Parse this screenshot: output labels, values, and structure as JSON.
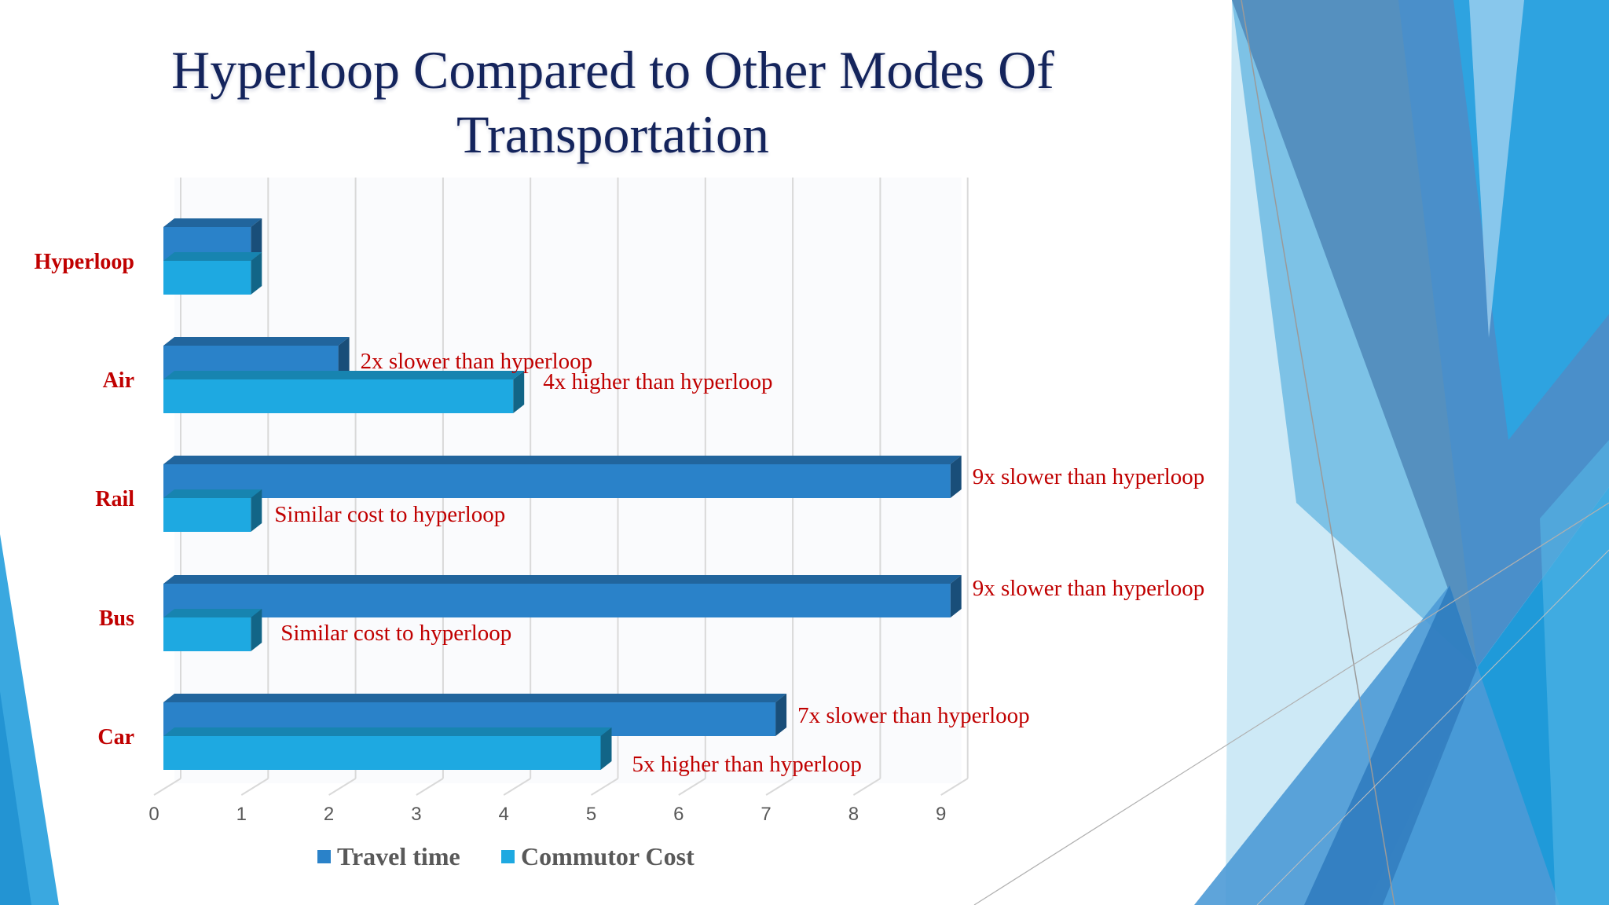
{
  "slide": {
    "title": "Hyperloop Compared to Other Modes Of Transportation"
  },
  "colors": {
    "travel_time": "#2a82c9",
    "commutor_cost": "#1ea9e1",
    "label_red": "#c00000",
    "title_navy": "#14245c",
    "grid": "#d9d9d9"
  },
  "chart_data": {
    "type": "bar",
    "orientation": "horizontal",
    "style": "3d-clustered",
    "title": "Hyperloop Compared to Other Modes Of Transportation",
    "categories": [
      "Hyperloop",
      "Air",
      "Rail",
      "Bus",
      "Car"
    ],
    "series": [
      {
        "name": "Travel time",
        "values": [
          1,
          2,
          9,
          9,
          7
        ],
        "labels": [
          "",
          "2x slower than hyperloop",
          "9x slower than hyperloop",
          "9x slower than hyperloop",
          "7x slower than hyperloop"
        ]
      },
      {
        "name": "Commutor Cost",
        "values": [
          1,
          4,
          1,
          1,
          5
        ],
        "labels": [
          "",
          "4x higher than hyperloop",
          "Similar cost to hyperloop",
          "Similar cost to hyperloop",
          "5x higher than hyperloop"
        ]
      }
    ],
    "xlim": [
      0,
      9
    ],
    "ticks": [
      "0",
      "1",
      "2",
      "3",
      "4",
      "5",
      "6",
      "7",
      "8",
      "9"
    ],
    "grid": true,
    "legend": "bottom"
  }
}
